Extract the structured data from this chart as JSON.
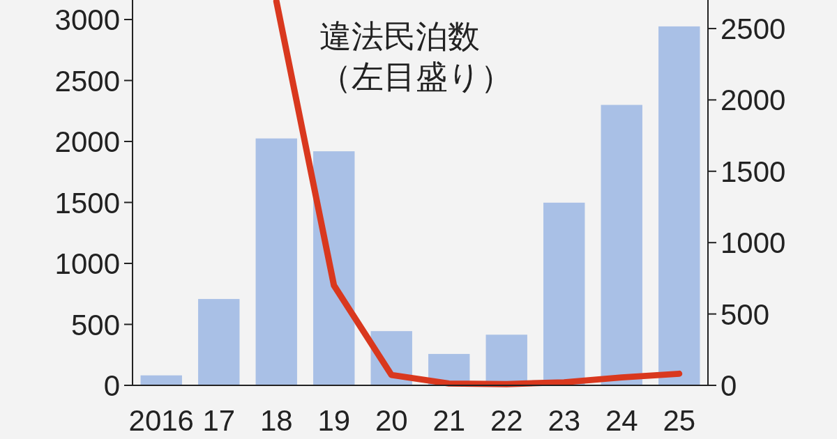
{
  "chart_data": {
    "type": "bar",
    "categories": [
      "2016",
      "17",
      "18",
      "19",
      "20",
      "21",
      "22",
      "23",
      "24",
      "25"
    ],
    "series": [
      {
        "axis": "y2",
        "color": "#a9c0e6",
        "values": [
          70,
          605,
          1730,
          1640,
          380,
          220,
          355,
          1280,
          1965,
          2515
        ]
      },
      {
        "type": "line",
        "axis": "y",
        "name": "違法民泊数（左目盛り）",
        "color": "#d9381e",
        "values": [
          null,
          null,
          3150,
          820,
          85,
          15,
          10,
          25,
          65,
          95
        ]
      }
    ],
    "ylim": [
      0,
      3160
    ],
    "yticks": [
      0,
      500,
      1000,
      1500,
      2000,
      2500,
      3000
    ],
    "y2lim": [
      0,
      2700
    ],
    "y2ticks": [
      0,
      500,
      1000,
      1500,
      2000,
      2500
    ],
    "grid": false,
    "marker": "none",
    "line_style": "solid"
  }
}
